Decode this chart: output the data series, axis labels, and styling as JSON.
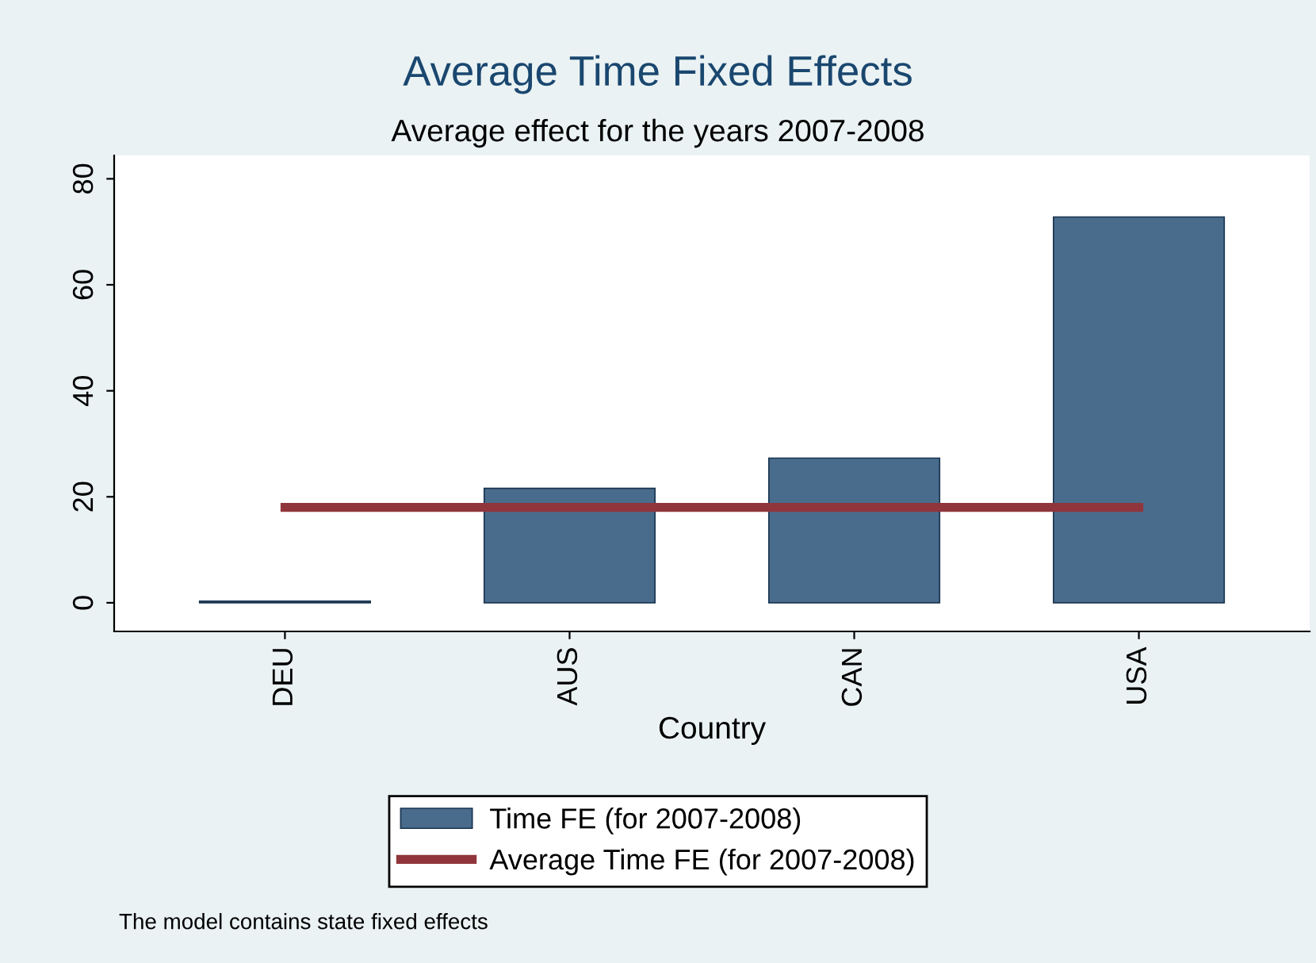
{
  "chart_data": {
    "type": "bar",
    "title": "Average Time Fixed Effects",
    "subtitle": "Average effect for the years 2007-2008",
    "xlabel": "Country",
    "categories": [
      "DEU",
      "AUS",
      "CAN",
      "USA"
    ],
    "series": [
      {
        "name": "Time FE (for 2007-2008)",
        "color": "#4a6c8c",
        "values": [
          0.3,
          21.6,
          27.3,
          72.8
        ]
      },
      {
        "name": "Average Time FE (for 2007-2008)",
        "type": "line",
        "color": "#90353b",
        "values": [
          18,
          18,
          18,
          18
        ]
      }
    ],
    "ylim": [
      -5.4,
      84.4
    ],
    "yticks": [
      0,
      20,
      40,
      60,
      80
    ],
    "grid": false,
    "legend": "bottom",
    "marker": "none",
    "line_style": "solid",
    "annotations": [
      "The model contains state fixed effects"
    ]
  }
}
